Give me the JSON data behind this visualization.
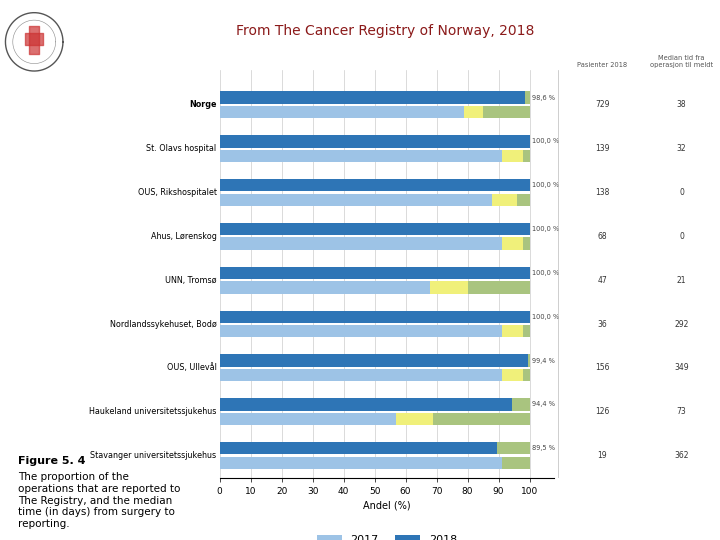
{
  "hospitals": [
    "Norge",
    "St. Olavs hospital",
    "OUS, Rikshospitalet",
    "Ahus, Lørenskog",
    "UNN, Tromsø",
    "Nordlandssykehuset, Bodø",
    "OUS, Ullevål",
    "Haukeland universitetssjukehus",
    "Stavanger universitetssjukehus"
  ],
  "bold_hospitals": [
    "Norge"
  ],
  "val_2018_blue": [
    98.6,
    100.0,
    100.0,
    100.0,
    100.0,
    100.0,
    99.4,
    94.4,
    89.5
  ],
  "val_2017_blue": [
    79.0,
    91.0,
    88.0,
    91.0,
    68.0,
    91.0,
    91.0,
    57.0,
    91.0
  ],
  "val_2017_yellow": [
    6.0,
    7.0,
    8.0,
    7.0,
    12.0,
    7.0,
    7.0,
    12.0,
    0.0
  ],
  "val_2017_green": [
    15.0,
    2.0,
    4.0,
    2.0,
    20.0,
    2.0,
    2.0,
    31.0,
    9.0
  ],
  "val_2018_green": [
    1.4,
    0.0,
    0.0,
    0.0,
    0.0,
    0.0,
    0.6,
    5.6,
    10.5
  ],
  "pct_labels": [
    "98,6 %",
    "100,0 %",
    "100,0 %",
    "100,0 %",
    "100,0 %",
    "100,0 %",
    "99,4 %",
    "94,4 %",
    "89,5 %"
  ],
  "pasienter_2018": [
    729,
    139,
    138,
    68,
    47,
    36,
    156,
    126,
    19
  ],
  "median_days": [
    38,
    32,
    0,
    0,
    21,
    292,
    349,
    73,
    362
  ],
  "color_2018_blue": "#2e75b6",
  "color_2017_blue": "#9dc3e6",
  "color_yellow": "#f0f07a",
  "color_green": "#a9c47f",
  "color_bg": "#ffffff",
  "color_grid": "#cccccc",
  "xlabel": "Andel (%)",
  "xticks": [
    0,
    10,
    20,
    30,
    40,
    50,
    60,
    70,
    80,
    90,
    100
  ],
  "title": "From The Cancer Registry of Norway, 2018",
  "legend_2017": "2017",
  "legend_2018": "2018",
  "col_header1": "Pasienter 2018",
  "col_header2": "Median tid fra\noperasjon til meldt",
  "figure_text_bold": "Figure 5. 4",
  "figure_text_body": "The proportion of the\noperations that are reported to\nThe Registry, and the median\ntime (in days) from surgery to\nreporting."
}
